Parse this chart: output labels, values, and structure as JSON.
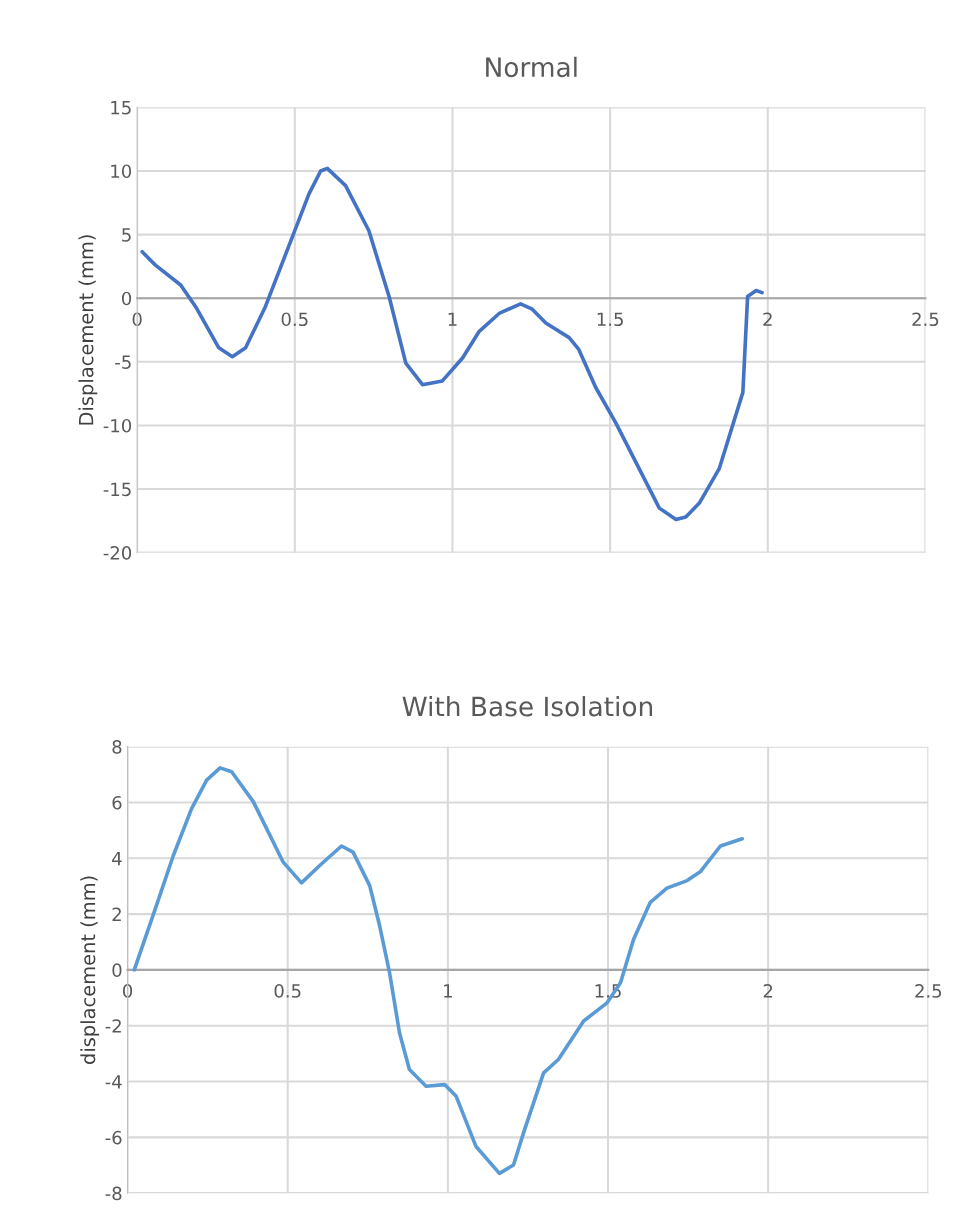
{
  "chart_data": [
    {
      "type": "line",
      "title": "Normal",
      "ylabel": "Displacement (mm)",
      "xlim": [
        0,
        2.5
      ],
      "xticks": [
        0,
        0.5,
        1,
        1.5,
        2,
        2.5
      ],
      "ylim": [
        -20,
        15
      ],
      "yticks": [
        -20,
        -15,
        -10,
        -5,
        0,
        5,
        10,
        15
      ],
      "grid": true,
      "marker": "none",
      "line_style": "solid",
      "series": [
        {
          "color": "#4472c4",
          "x": [
            0.016,
            0.058,
            0.138,
            0.185,
            0.259,
            0.302,
            0.344,
            0.407,
            0.492,
            0.545,
            0.582,
            0.603,
            0.661,
            0.735,
            0.799,
            0.852,
            0.905,
            0.968,
            1.032,
            1.085,
            1.148,
            1.216,
            1.253,
            1.296,
            1.37,
            1.4,
            1.454,
            1.518,
            1.592,
            1.656,
            1.709,
            1.74,
            1.783,
            1.846,
            1.921,
            1.936,
            1.963,
            1.982
          ],
          "values": [
            3.65,
            2.6,
            1.04,
            -0.65,
            -3.9,
            -4.6,
            -3.9,
            -0.65,
            4.8,
            8.2,
            10.0,
            10.2,
            8.85,
            5.3,
            0.13,
            -5.1,
            -6.8,
            -6.5,
            -4.7,
            -2.6,
            -1.2,
            -0.44,
            -0.86,
            -1.95,
            -3.1,
            -4.0,
            -7.0,
            -9.8,
            -13.4,
            -16.5,
            -17.4,
            -17.2,
            -16.1,
            -13.4,
            -7.4,
            0.13,
            0.6,
            0.44
          ]
        }
      ]
    },
    {
      "type": "line",
      "title": "With Base Isolation",
      "ylabel": "displacement (mm)",
      "xlim": [
        0,
        2.5
      ],
      "xticks": [
        0,
        0.5,
        1,
        1.5,
        2,
        2.5
      ],
      "ylim": [
        -8,
        8
      ],
      "yticks": [
        -8,
        -6,
        -4,
        -2,
        0,
        2,
        4,
        6,
        8
      ],
      "grid": true,
      "marker": "none",
      "line_style": "solid",
      "series": [
        {
          "color": "#5b9bd5",
          "x": [
            0.021,
            0.081,
            0.143,
            0.2,
            0.247,
            0.289,
            0.325,
            0.393,
            0.486,
            0.543,
            0.6,
            0.668,
            0.704,
            0.756,
            0.787,
            0.818,
            0.849,
            0.88,
            0.932,
            0.99,
            1.026,
            1.088,
            1.161,
            1.205,
            1.236,
            1.299,
            1.345,
            1.424,
            1.497,
            1.539,
            1.58,
            1.632,
            1.684,
            1.747,
            1.789,
            1.851,
            1.919
          ],
          "values": [
            0,
            2.0,
            4.1,
            5.78,
            6.8,
            7.24,
            7.1,
            6.02,
            3.86,
            3.12,
            3.74,
            4.44,
            4.22,
            3.02,
            1.58,
            -0.1,
            -2.25,
            -3.57,
            -4.17,
            -4.11,
            -4.53,
            -6.33,
            -7.29,
            -6.99,
            -5.85,
            -3.69,
            -3.21,
            -1.83,
            -1.18,
            -0.46,
            1.1,
            2.42,
            2.93,
            3.2,
            3.53,
            4.44,
            4.7
          ]
        }
      ]
    }
  ]
}
